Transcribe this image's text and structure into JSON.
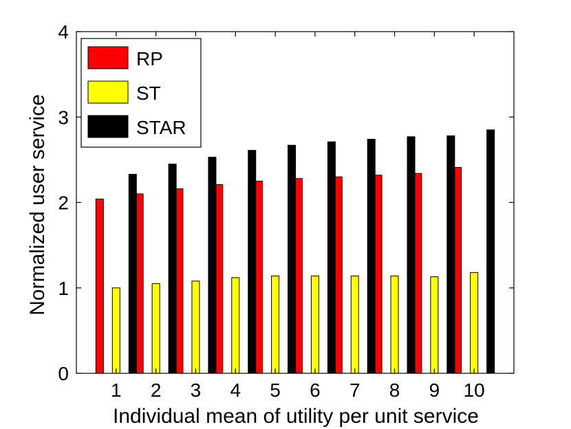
{
  "chart_data": {
    "type": "bar",
    "title": "",
    "xlabel": "Individual mean of utility per unit service",
    "ylabel": "Normalized user service",
    "ylim": [
      0,
      4
    ],
    "yticks": [
      0,
      1,
      2,
      3,
      4
    ],
    "xlim": [
      0,
      11
    ],
    "categories": [
      "1",
      "2",
      "3",
      "4",
      "5",
      "6",
      "7",
      "8",
      "9",
      "10"
    ],
    "legend_position": "top-left",
    "grid": false,
    "series": [
      {
        "name": "RP",
        "color": "#ff0000",
        "values": [
          2.04,
          2.1,
          2.16,
          2.21,
          2.25,
          2.28,
          2.3,
          2.32,
          2.34,
          2.41
        ]
      },
      {
        "name": "ST",
        "color": "#ffff00",
        "values": [
          1.0,
          1.05,
          1.08,
          1.12,
          1.14,
          1.14,
          1.14,
          1.14,
          1.13,
          1.18
        ]
      },
      {
        "name": "STAR",
        "color": "#000000",
        "values": [
          2.33,
          2.45,
          2.53,
          2.61,
          2.67,
          2.71,
          2.74,
          2.77,
          2.78,
          2.85
        ]
      }
    ]
  }
}
